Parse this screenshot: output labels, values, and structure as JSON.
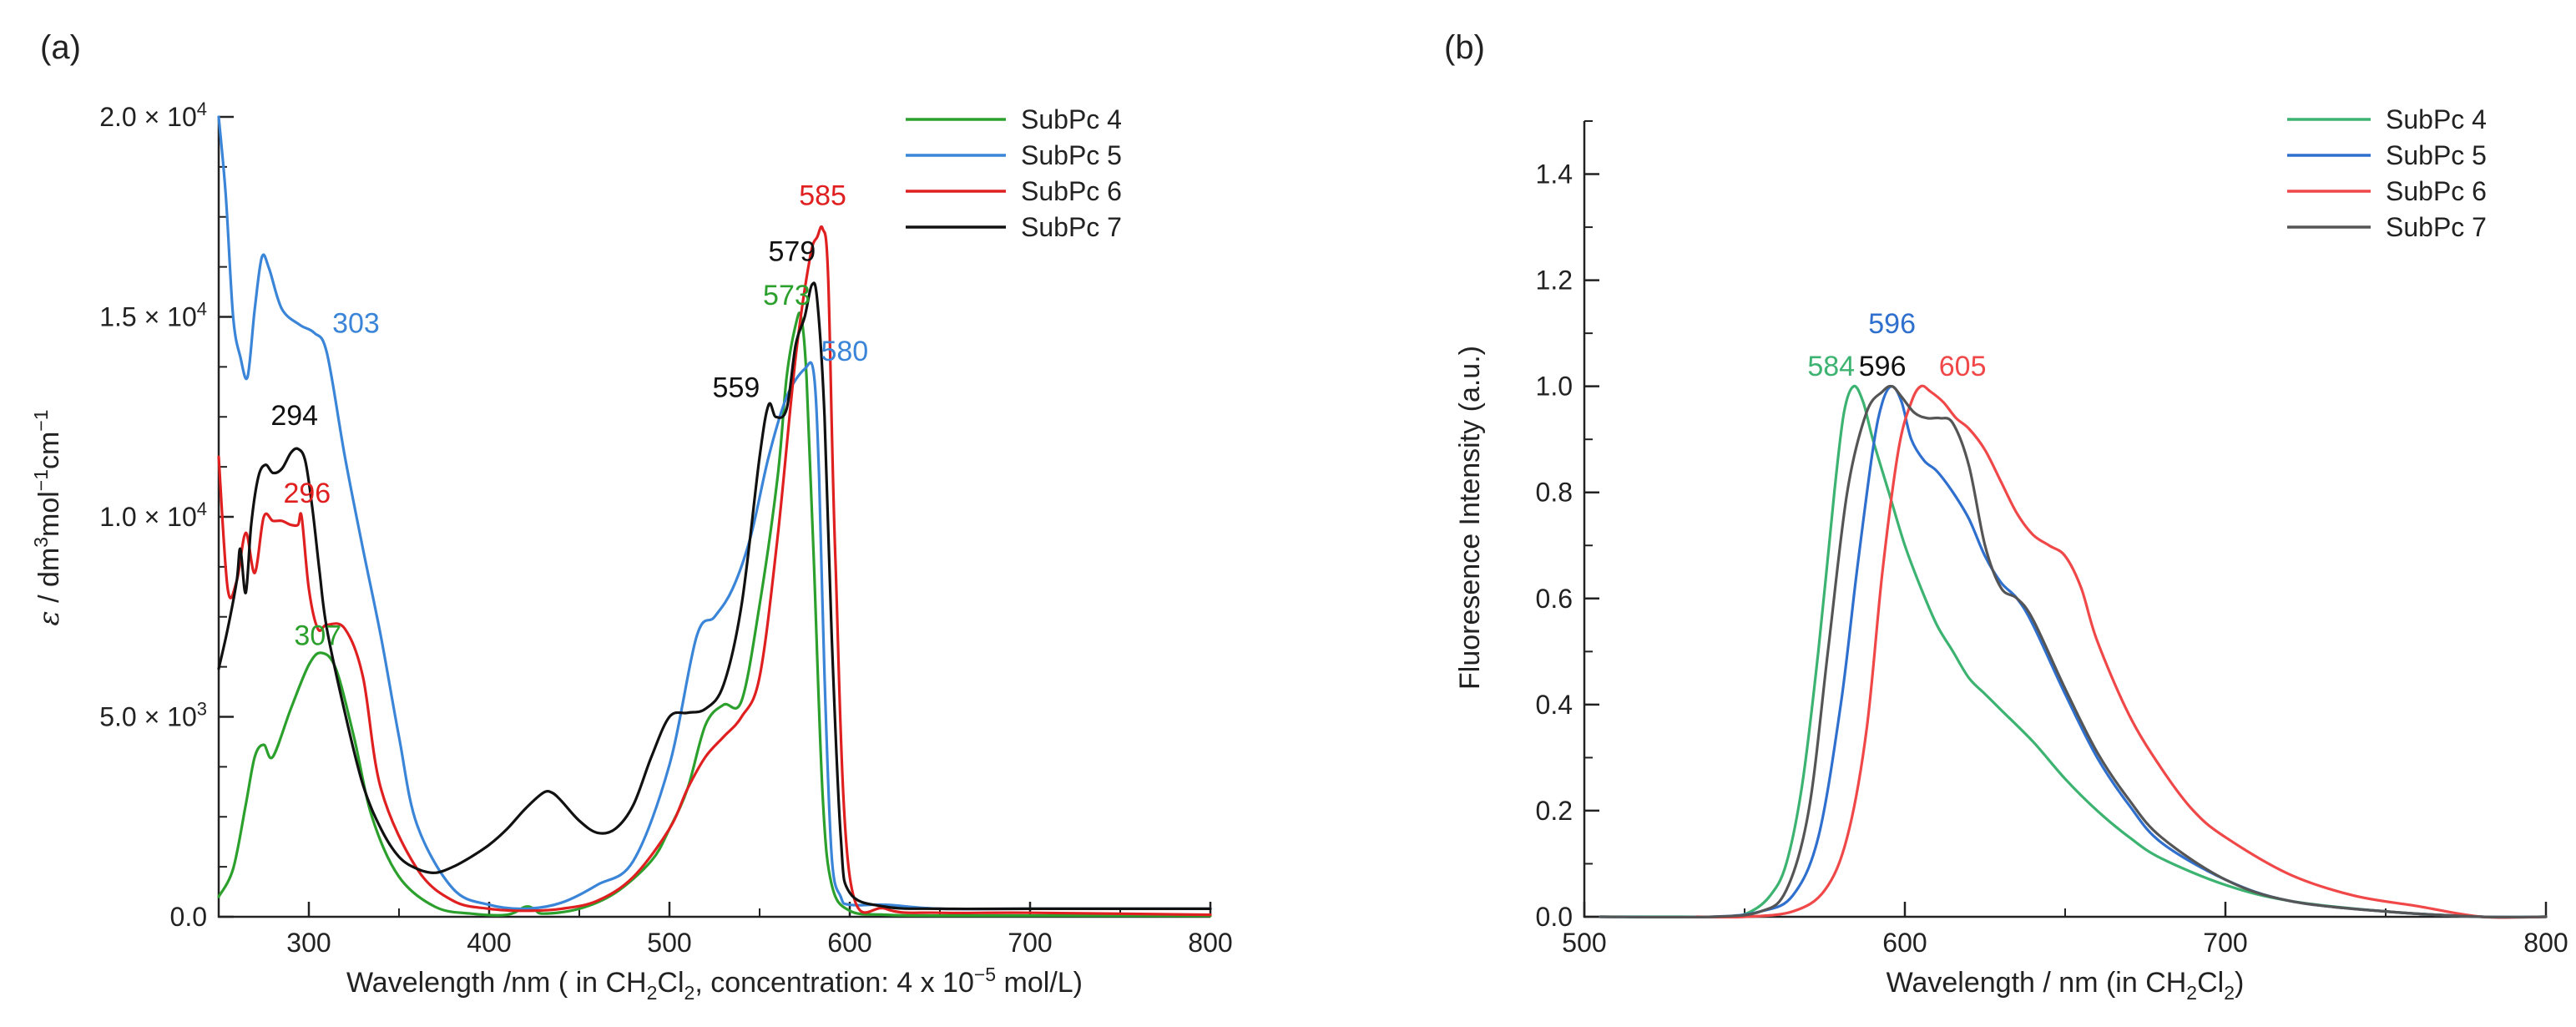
{
  "chart_data": [
    {
      "type": "line",
      "panel_label": "(a)",
      "xlabel": {
        "pre": "Wavelength /nm ( in CH",
        "s1": "2",
        "mid1": "Cl",
        "s2": "2",
        "mid2": ", concentration: 4 x 10",
        "exp": "−5",
        "post": " mol/L)"
      },
      "ylabel": {
        "epsilon": "ε",
        "pre": " / dm",
        "e1": "3",
        "mid1": "mol",
        "e2": "−1",
        "mid2": "cm",
        "e3": "−1"
      },
      "xlim": [
        250,
        800
      ],
      "ylim": [
        0,
        20000
      ],
      "x_ticks": [
        {
          "value": 300,
          "label": "300"
        },
        {
          "value": 400,
          "label": "400"
        },
        {
          "value": 500,
          "label": "500"
        },
        {
          "value": 600,
          "label": "600"
        },
        {
          "value": 700,
          "label": "700"
        },
        {
          "value": 800,
          "label": "800"
        }
      ],
      "y_ticks": [
        {
          "value": 0,
          "label": "0.0"
        },
        {
          "value": 5000,
          "label": "5.0 × 10",
          "exp": "3"
        },
        {
          "value": 10000,
          "label": "1.0 × 10",
          "exp": "4"
        },
        {
          "value": 15000,
          "label": "1.5 × 10",
          "exp": "4"
        },
        {
          "value": 20000,
          "label": "2.0 × 10",
          "exp": "4"
        }
      ],
      "legend_position": "top-right",
      "series": [
        {
          "name": "SubPc 4",
          "color": "#2ca02c",
          "x": [
            250,
            258,
            265,
            270,
            275,
            280,
            290,
            300,
            307,
            315,
            325,
            335,
            350,
            370,
            390,
            410,
            420,
            425,
            430,
            450,
            470,
            490,
            500,
            510,
            520,
            530,
            540,
            550,
            560,
            565,
            570,
            573,
            576,
            580,
            585,
            590,
            600,
            620,
            650,
            700,
            800
          ],
          "y": [
            500,
            1200,
            2800,
            4000,
            4300,
            4000,
            5200,
            6300,
            6600,
            6200,
            4500,
            2500,
            1000,
            250,
            80,
            50,
            250,
            200,
            80,
            200,
            600,
            1400,
            2200,
            3200,
            4800,
            5300,
            5400,
            7800,
            11000,
            13500,
            14800,
            15000,
            13500,
            9000,
            3000,
            800,
            150,
            50,
            30,
            30,
            20
          ]
        },
        {
          "name": "SubPc 5",
          "color": "#3a85d8",
          "x": [
            250,
            254,
            258,
            262,
            266,
            270,
            274,
            278,
            285,
            295,
            303,
            310,
            320,
            330,
            340,
            350,
            360,
            380,
            400,
            420,
            440,
            460,
            480,
            500,
            515,
            525,
            535,
            545,
            555,
            565,
            575,
            580,
            583,
            586,
            590,
            595,
            600,
            620,
            650,
            700,
            800
          ],
          "y": [
            20000,
            18000,
            15000,
            14000,
            13500,
            15200,
            16500,
            16200,
            15200,
            14800,
            14600,
            14100,
            11500,
            9200,
            7000,
            4500,
            2300,
            700,
            300,
            200,
            350,
            800,
            1400,
            3800,
            7000,
            7500,
            8200,
            9500,
            11500,
            13000,
            13700,
            13600,
            11000,
            6000,
            1500,
            500,
            300,
            300,
            200,
            200,
            200
          ]
        },
        {
          "name": "SubPc 6",
          "color": "#e02020",
          "x": [
            250,
            255,
            260,
            265,
            270,
            275,
            280,
            285,
            290,
            294,
            296,
            300,
            305,
            310,
            320,
            330,
            340,
            360,
            380,
            400,
            420,
            440,
            460,
            480,
            500,
            510,
            520,
            530,
            540,
            550,
            560,
            570,
            578,
            582,
            585,
            588,
            592,
            600,
            620,
            650,
            700,
            800
          ],
          "y": [
            11500,
            8200,
            8400,
            9600,
            8600,
            10000,
            9900,
            9900,
            9800,
            9800,
            10000,
            8200,
            7200,
            7300,
            7200,
            6000,
            3200,
            1200,
            400,
            200,
            150,
            200,
            400,
            1000,
            2200,
            3200,
            4000,
            4500,
            5000,
            6000,
            9500,
            14000,
            16500,
            17000,
            17200,
            16000,
            9000,
            1000,
            200,
            100,
            100,
            50
          ]
        },
        {
          "name": "SubPc 7",
          "color": "#111111",
          "x": [
            250,
            255,
            260,
            262,
            265,
            268,
            272,
            276,
            280,
            285,
            290,
            294,
            298,
            302,
            306,
            310,
            320,
            330,
            340,
            350,
            360,
            370,
            380,
            390,
            400,
            410,
            420,
            430,
            435,
            440,
            450,
            460,
            470,
            480,
            490,
            500,
            510,
            520,
            530,
            540,
            550,
            555,
            559,
            565,
            570,
            575,
            579,
            582,
            586,
            590,
            595,
            600,
            620,
            650,
            700,
            800
          ],
          "y": [
            6200,
            7200,
            8400,
            9200,
            8100,
            9800,
            11000,
            11300,
            11100,
            11200,
            11600,
            11700,
            11400,
            10200,
            8600,
            7200,
            5100,
            3300,
            2200,
            1500,
            1200,
            1100,
            1250,
            1500,
            1800,
            2200,
            2700,
            3100,
            3100,
            2900,
            2400,
            2100,
            2200,
            2800,
            4000,
            5000,
            5100,
            5200,
            5800,
            7800,
            11500,
            12800,
            12500,
            12700,
            14300,
            15000,
            15800,
            15400,
            12500,
            7000,
            2000,
            600,
            250,
            200,
            200,
            200
          ]
        }
      ],
      "annotations": [
        {
          "text": "303",
          "x": 313,
          "y": 14600,
          "color": "#3a85d8",
          "anchor": "start"
        },
        {
          "text": "294",
          "x": 292,
          "y": 12300,
          "color": "#111111",
          "anchor": "middle"
        },
        {
          "text": "296",
          "x": 299,
          "y": 10350,
          "color": "#e02020",
          "anchor": "middle"
        },
        {
          "text": "307",
          "x": 305,
          "y": 6800,
          "color": "#2ca02c",
          "anchor": "middle"
        },
        {
          "text": "585",
          "x": 585,
          "y": 17800,
          "color": "#e02020",
          "anchor": "middle"
        },
        {
          "text": "579",
          "x": 568,
          "y": 16400,
          "color": "#111111",
          "anchor": "middle"
        },
        {
          "text": "573",
          "x": 565,
          "y": 15300,
          "color": "#2ca02c",
          "anchor": "middle"
        },
        {
          "text": "580",
          "x": 584,
          "y": 13900,
          "color": "#3a85d8",
          "anchor": "start"
        },
        {
          "text": "559",
          "x": 537,
          "y": 13000,
          "color": "#111111",
          "anchor": "middle"
        }
      ]
    },
    {
      "type": "line",
      "panel_label": "(b)",
      "xlabel": {
        "pre": "Wavelength / nm (in CH",
        "s1": "2",
        "mid1": "Cl",
        "s2": "2",
        "post": ")"
      },
      "ylabel": {
        "text": "Fluoresence Intensity (a.u.)"
      },
      "xlim": [
        500,
        800
      ],
      "ylim": [
        0,
        1.5
      ],
      "x_ticks": [
        {
          "value": 500,
          "label": "500"
        },
        {
          "value": 600,
          "label": "600"
        },
        {
          "value": 700,
          "label": "700"
        },
        {
          "value": 800,
          "label": "800"
        }
      ],
      "y_ticks": [
        {
          "value": 0.0,
          "label": "0.0"
        },
        {
          "value": 0.2,
          "label": "0.2"
        },
        {
          "value": 0.4,
          "label": "0.4"
        },
        {
          "value": 0.6,
          "label": "0.6"
        },
        {
          "value": 0.8,
          "label": "0.8"
        },
        {
          "value": 1.0,
          "label": "1.0"
        },
        {
          "value": 1.2,
          "label": "1.2"
        },
        {
          "value": 1.4,
          "label": "1.4"
        }
      ],
      "legend_position": "top-right",
      "series": [
        {
          "name": "SubPc 4",
          "color": "#3cb371",
          "x": [
            505,
            530,
            545,
            552,
            558,
            563,
            568,
            573,
            578,
            581,
            584,
            587,
            590,
            595,
            600,
            605,
            610,
            615,
            620,
            625,
            630,
            640,
            650,
            660,
            670,
            680,
            700,
            720,
            750,
            780,
            800
          ],
          "y": [
            0,
            0,
            0,
            0.01,
            0.04,
            0.1,
            0.25,
            0.5,
            0.8,
            0.95,
            1.0,
            0.97,
            0.9,
            0.8,
            0.7,
            0.62,
            0.55,
            0.5,
            0.45,
            0.42,
            0.39,
            0.33,
            0.26,
            0.2,
            0.15,
            0.11,
            0.06,
            0.03,
            0.01,
            0,
            0
          ]
        },
        {
          "name": "SubPc 5",
          "color": "#2f6fce",
          "x": [
            505,
            540,
            555,
            565,
            573,
            580,
            585,
            590,
            593,
            596,
            599,
            602,
            606,
            610,
            615,
            620,
            625,
            630,
            635,
            640,
            650,
            660,
            670,
            680,
            700,
            720,
            750,
            780,
            800
          ],
          "y": [
            0,
            0,
            0.01,
            0.04,
            0.15,
            0.4,
            0.65,
            0.88,
            0.97,
            1.0,
            0.97,
            0.9,
            0.86,
            0.84,
            0.8,
            0.75,
            0.68,
            0.63,
            0.6,
            0.55,
            0.42,
            0.3,
            0.21,
            0.14,
            0.07,
            0.03,
            0.01,
            0,
            0
          ]
        },
        {
          "name": "SubPc 6",
          "color": "#f04848",
          "x": [
            535,
            550,
            565,
            575,
            582,
            588,
            593,
            598,
            602,
            605,
            608,
            612,
            616,
            620,
            625,
            630,
            635,
            640,
            645,
            650,
            655,
            660,
            670,
            680,
            690,
            700,
            720,
            740,
            760,
            780,
            800
          ],
          "y": [
            0,
            0,
            0.01,
            0.05,
            0.15,
            0.35,
            0.65,
            0.88,
            0.97,
            1.0,
            0.99,
            0.97,
            0.94,
            0.92,
            0.88,
            0.82,
            0.76,
            0.72,
            0.7,
            0.68,
            0.62,
            0.52,
            0.38,
            0.28,
            0.2,
            0.15,
            0.08,
            0.04,
            0.02,
            0,
            0
          ]
        },
        {
          "name": "SubPc 7",
          "color": "#555555",
          "x": [
            505,
            540,
            555,
            563,
            570,
            576,
            582,
            588,
            593,
            596,
            599,
            603,
            607,
            611,
            615,
            620,
            625,
            630,
            635,
            640,
            650,
            660,
            670,
            680,
            700,
            720,
            750,
            780,
            800
          ],
          "y": [
            0,
            0,
            0.01,
            0.05,
            0.2,
            0.5,
            0.8,
            0.95,
            0.99,
            1.0,
            0.98,
            0.95,
            0.94,
            0.94,
            0.93,
            0.85,
            0.7,
            0.62,
            0.6,
            0.56,
            0.43,
            0.31,
            0.22,
            0.15,
            0.07,
            0.03,
            0.01,
            0,
            0
          ]
        }
      ],
      "annotations": [
        {
          "text": "584",
          "x": 577,
          "y": 1.02,
          "color": "#3cb371",
          "anchor": "middle"
        },
        {
          "text": "596",
          "x": 593,
          "y": 1.02,
          "color": "#111111",
          "anchor": "middle"
        },
        {
          "text": "596",
          "x": 596,
          "y": 1.1,
          "color": "#2f6fce",
          "anchor": "middle"
        },
        {
          "text": "605",
          "x": 618,
          "y": 1.02,
          "color": "#f04848",
          "anchor": "middle"
        }
      ]
    }
  ]
}
